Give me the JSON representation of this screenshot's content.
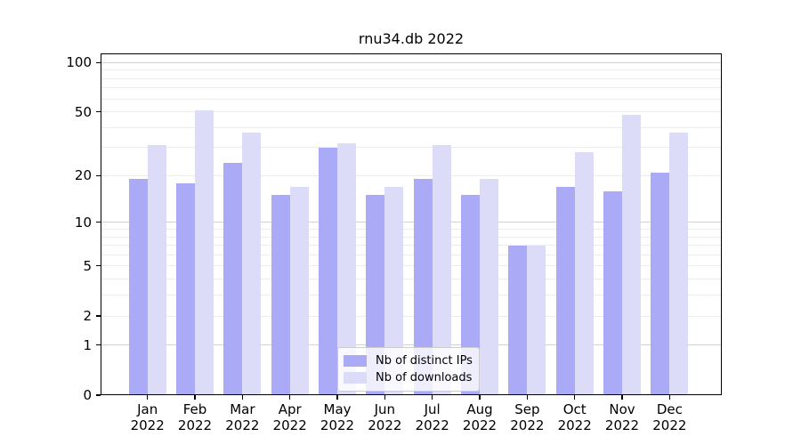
{
  "chart_data": {
    "type": "bar",
    "title": "rnu34.db 2022",
    "categories": [
      {
        "month": "Jan",
        "year": "2022"
      },
      {
        "month": "Feb",
        "year": "2022"
      },
      {
        "month": "Mar",
        "year": "2022"
      },
      {
        "month": "Apr",
        "year": "2022"
      },
      {
        "month": "May",
        "year": "2022"
      },
      {
        "month": "Jun",
        "year": "2022"
      },
      {
        "month": "Jul",
        "year": "2022"
      },
      {
        "month": "Aug",
        "year": "2022"
      },
      {
        "month": "Sep",
        "year": "2022"
      },
      {
        "month": "Oct",
        "year": "2022"
      },
      {
        "month": "Nov",
        "year": "2022"
      },
      {
        "month": "Dec",
        "year": "2022"
      }
    ],
    "series": [
      {
        "name": "Nb of distinct IPs",
        "color": "#aaaaf6",
        "values": [
          19,
          18,
          24,
          15,
          30,
          15,
          19,
          15,
          7,
          17,
          16,
          21
        ]
      },
      {
        "name": "Nb of downloads",
        "color": "#dcdcf9",
        "values": [
          31,
          51,
          37,
          17,
          32,
          17,
          31,
          19,
          7,
          28,
          48,
          37
        ]
      }
    ],
    "y_axis": {
      "scale": "log1p",
      "ticks": [
        0,
        1,
        2,
        5,
        10,
        20,
        50,
        100
      ],
      "range_top": 114
    },
    "xlabel": "",
    "ylabel": "",
    "grid": {
      "major": [
        1,
        10,
        100
      ],
      "minor": [
        2,
        3,
        4,
        5,
        6,
        7,
        8,
        9,
        20,
        30,
        40,
        50,
        60,
        70,
        80,
        90
      ],
      "color_major": "#d2d2d2",
      "color_minor": "#ececec"
    },
    "legend": {
      "position": "lower center",
      "frame_alpha": 0.8
    }
  }
}
